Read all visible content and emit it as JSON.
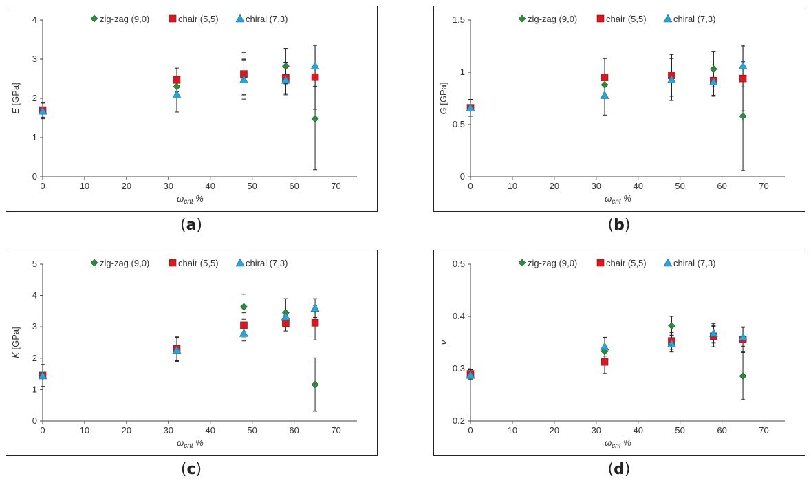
{
  "panels": [
    {
      "id": "a",
      "caption": "a",
      "chart_data": {
        "type": "scatter",
        "xlabel": "ω",
        "xlabel_sub": "cnt",
        "xlabel_suffix": " %",
        "ylabel_italic": "E",
        "ylabel_unit": " [GPa]",
        "xlim": [
          0,
          75
        ],
        "ylim": [
          0,
          4
        ],
        "xticks": [
          "0",
          "10",
          "20",
          "30",
          "40",
          "50",
          "60",
          "70"
        ],
        "yticks": [
          "0",
          "1",
          "2",
          "3",
          "4"
        ],
        "xtick_values": [
          0,
          10,
          20,
          30,
          40,
          50,
          60,
          70
        ],
        "ytick_values": [
          0,
          1,
          2,
          3,
          4
        ],
        "legend_position": "top-center",
        "series": [
          {
            "name": "zig-zag (9,0)",
            "marker": "diamond",
            "color": "#2e8b3e",
            "x": [
              0,
              32,
              48,
              58,
              65
            ],
            "y": [
              1.7,
              2.3,
              2.55,
              2.82,
              1.48
            ],
            "err": [
              0.18,
              0.25,
              0.45,
              0.45,
              1.3
            ]
          },
          {
            "name": "chair (5,5)",
            "marker": "square",
            "color": "#d71920",
            "x": [
              0,
              32,
              48,
              58,
              65
            ],
            "y": [
              1.7,
              2.47,
              2.62,
              2.52,
              2.54
            ],
            "err": [
              0.2,
              0.3,
              0.55,
              0.4,
              0.82
            ]
          },
          {
            "name": "chiral (7,3)",
            "marker": "triangle",
            "color": "#2aa3d9",
            "x": [
              0,
              32,
              48,
              58,
              65
            ],
            "y": [
              1.68,
              2.1,
              2.48,
              2.47,
              2.83
            ],
            "err": [
              0.2,
              0.45,
              0.5,
              0.38,
              0.52
            ]
          }
        ]
      }
    },
    {
      "id": "b",
      "caption": "b",
      "chart_data": {
        "type": "scatter",
        "xlabel": "ω",
        "xlabel_sub": "cnt",
        "xlabel_suffix": " %",
        "ylabel_italic": "G",
        "ylabel_unit": " [GPa]",
        "xlim": [
          0,
          75
        ],
        "ylim": [
          0,
          1.5
        ],
        "xticks": [
          "0",
          "10",
          "20",
          "30",
          "40",
          "50",
          "60",
          "70"
        ],
        "yticks": [
          "0",
          "0.5",
          "1",
          "1.5"
        ],
        "xtick_values": [
          0,
          10,
          20,
          30,
          40,
          50,
          60,
          70
        ],
        "ytick_values": [
          0,
          0.5,
          1,
          1.5
        ],
        "legend_position": "top-center",
        "series": [
          {
            "name": "zig-zag (9,0)",
            "marker": "diamond",
            "color": "#2e8b3e",
            "x": [
              0,
              32,
              48,
              58,
              65
            ],
            "y": [
              0.66,
              0.88,
              0.95,
              1.03,
              0.58
            ],
            "err": [
              0.08,
              0.1,
              0.22,
              0.17,
              0.52
            ]
          },
          {
            "name": "chair (5,5)",
            "marker": "square",
            "color": "#d71920",
            "x": [
              0,
              32,
              48,
              58,
              65
            ],
            "y": [
              0.66,
              0.95,
              0.97,
              0.92,
              0.94
            ],
            "err": [
              0.08,
              0.18,
              0.2,
              0.15,
              0.31
            ]
          },
          {
            "name": "chiral (7,3)",
            "marker": "triangle",
            "color": "#2aa3d9",
            "x": [
              0,
              32,
              48,
              58,
              65
            ],
            "y": [
              0.66,
              0.78,
              0.93,
              0.91,
              1.06
            ],
            "err": [
              0.08,
              0.19,
              0.2,
              0.13,
              0.2
            ]
          }
        ]
      }
    },
    {
      "id": "c",
      "caption": "c",
      "chart_data": {
        "type": "scatter",
        "xlabel": "ω",
        "xlabel_sub": "cnt",
        "xlabel_suffix": " %",
        "ylabel_italic": "K",
        "ylabel_unit": " [GPa]",
        "xlim": [
          0,
          75
        ],
        "ylim": [
          0,
          5
        ],
        "xticks": [
          "0",
          "10",
          "20",
          "30",
          "40",
          "50",
          "60",
          "70"
        ],
        "yticks": [
          "0",
          "1",
          "2",
          "3",
          "4",
          "5"
        ],
        "xtick_values": [
          0,
          10,
          20,
          30,
          40,
          50,
          60,
          70
        ],
        "ytick_values": [
          0,
          1,
          2,
          3,
          4,
          5
        ],
        "legend_position": "top-center",
        "series": [
          {
            "name": "zig-zag (9,0)",
            "marker": "diamond",
            "color": "#2e8b3e",
            "x": [
              0,
              32,
              48,
              58,
              65
            ],
            "y": [
              1.45,
              2.28,
              3.64,
              3.45,
              1.16
            ],
            "err": [
              0.35,
              0.38,
              0.4,
              0.45,
              0.85
            ]
          },
          {
            "name": "chair (5,5)",
            "marker": "square",
            "color": "#d71920",
            "x": [
              0,
              32,
              48,
              58,
              65
            ],
            "y": [
              1.45,
              2.3,
              3.05,
              3.12,
              3.13
            ],
            "err": [
              0.35,
              0.38,
              0.4,
              0.25,
              0.55
            ]
          },
          {
            "name": "chiral (7,3)",
            "marker": "triangle",
            "color": "#2aa3d9",
            "x": [
              0,
              32,
              48,
              58,
              65
            ],
            "y": [
              1.45,
              2.26,
              2.8,
              3.33,
              3.6
            ],
            "err": [
              0.35,
              0.38,
              0.25,
              0.3,
              0.3
            ]
          }
        ]
      }
    },
    {
      "id": "d",
      "caption": "d",
      "chart_data": {
        "type": "scatter",
        "xlabel": "ω",
        "xlabel_sub": "cnt",
        "xlabel_suffix": " %",
        "ylabel_italic": "ν",
        "ylabel_unit": "",
        "xlim": [
          0,
          75
        ],
        "ylim": [
          0.2,
          0.5
        ],
        "xticks": [
          "0",
          "10",
          "20",
          "30",
          "40",
          "50",
          "60",
          "70"
        ],
        "yticks": [
          "0.2",
          "0.3",
          "0.4",
          "0.5"
        ],
        "xtick_values": [
          0,
          10,
          20,
          30,
          40,
          50,
          60,
          70
        ],
        "ytick_values": [
          0.2,
          0.3,
          0.4,
          0.5
        ],
        "legend_position": "top-center",
        "series": [
          {
            "name": "zig-zag (9,0)",
            "marker": "diamond",
            "color": "#2e8b3e",
            "x": [
              0,
              32,
              48,
              58,
              65
            ],
            "y": [
              0.29,
              0.333,
              0.382,
              0.365,
              0.286
            ],
            "err": [
              0.008,
              0.026,
              0.018,
              0.016,
              0.045
            ]
          },
          {
            "name": "chair (5,5)",
            "marker": "square",
            "color": "#d71920",
            "x": [
              0,
              32,
              48,
              58,
              65
            ],
            "y": [
              0.29,
              0.313,
              0.353,
              0.362,
              0.356
            ],
            "err": [
              0.008,
              0.022,
              0.016,
              0.02,
              0.024
            ]
          },
          {
            "name": "chiral (7,3)",
            "marker": "triangle",
            "color": "#2aa3d9",
            "x": [
              0,
              32,
              48,
              58,
              65
            ],
            "y": [
              0.288,
              0.342,
              0.348,
              0.368,
              0.361
            ],
            "err": [
              0.008,
              0.018,
              0.016,
              0.018,
              0.018
            ]
          }
        ]
      }
    }
  ]
}
